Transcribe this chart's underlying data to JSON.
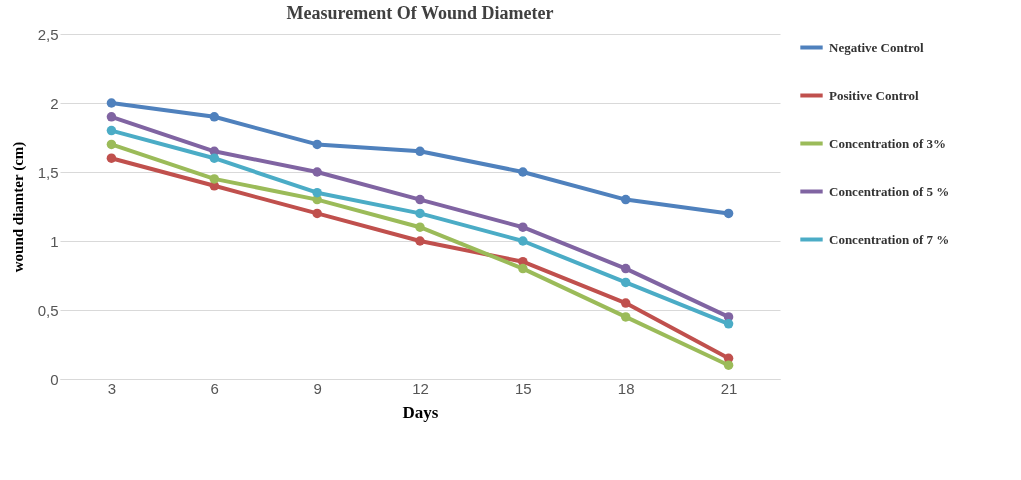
{
  "chart_data": {
    "type": "line",
    "title": "Measurement Of Wound Diameter",
    "xlabel": "Days",
    "ylabel": "wound diamter (cm)",
    "categories": [
      "3",
      "6",
      "9",
      "12",
      "15",
      "18",
      "21"
    ],
    "ylim": [
      0,
      2.5
    ],
    "yticks": [
      0,
      {
        "value": 0.5,
        "label": "0,5"
      },
      1,
      {
        "value": 1.5,
        "label": "1,5"
      },
      2,
      {
        "value": 2.5,
        "label": "2,5"
      }
    ],
    "grid": "y",
    "legend": "right",
    "marker": "circle",
    "line_style": "solid",
    "series": [
      {
        "name": "Negative Control",
        "color": "#4f81bd",
        "values": [
          2.0,
          1.9,
          1.7,
          1.65,
          1.5,
          1.3,
          1.2
        ]
      },
      {
        "name": "Positive Control",
        "color": "#c0504d",
        "values": [
          1.6,
          1.4,
          1.2,
          1.0,
          0.85,
          0.55,
          0.15
        ]
      },
      {
        "name": "Concentration of 3%",
        "color": "#9bbb59",
        "values": [
          1.7,
          1.45,
          1.3,
          1.1,
          0.8,
          0.45,
          0.1
        ]
      },
      {
        "name": "Concentration of 5 %",
        "color": "#8064a2",
        "values": [
          1.9,
          1.65,
          1.5,
          1.3,
          1.1,
          0.8,
          0.45
        ]
      },
      {
        "name": "Concentration of 7 %",
        "color": "#4bacc6",
        "values": [
          1.8,
          1.6,
          1.35,
          1.2,
          1.0,
          0.7,
          0.4
        ]
      }
    ]
  }
}
